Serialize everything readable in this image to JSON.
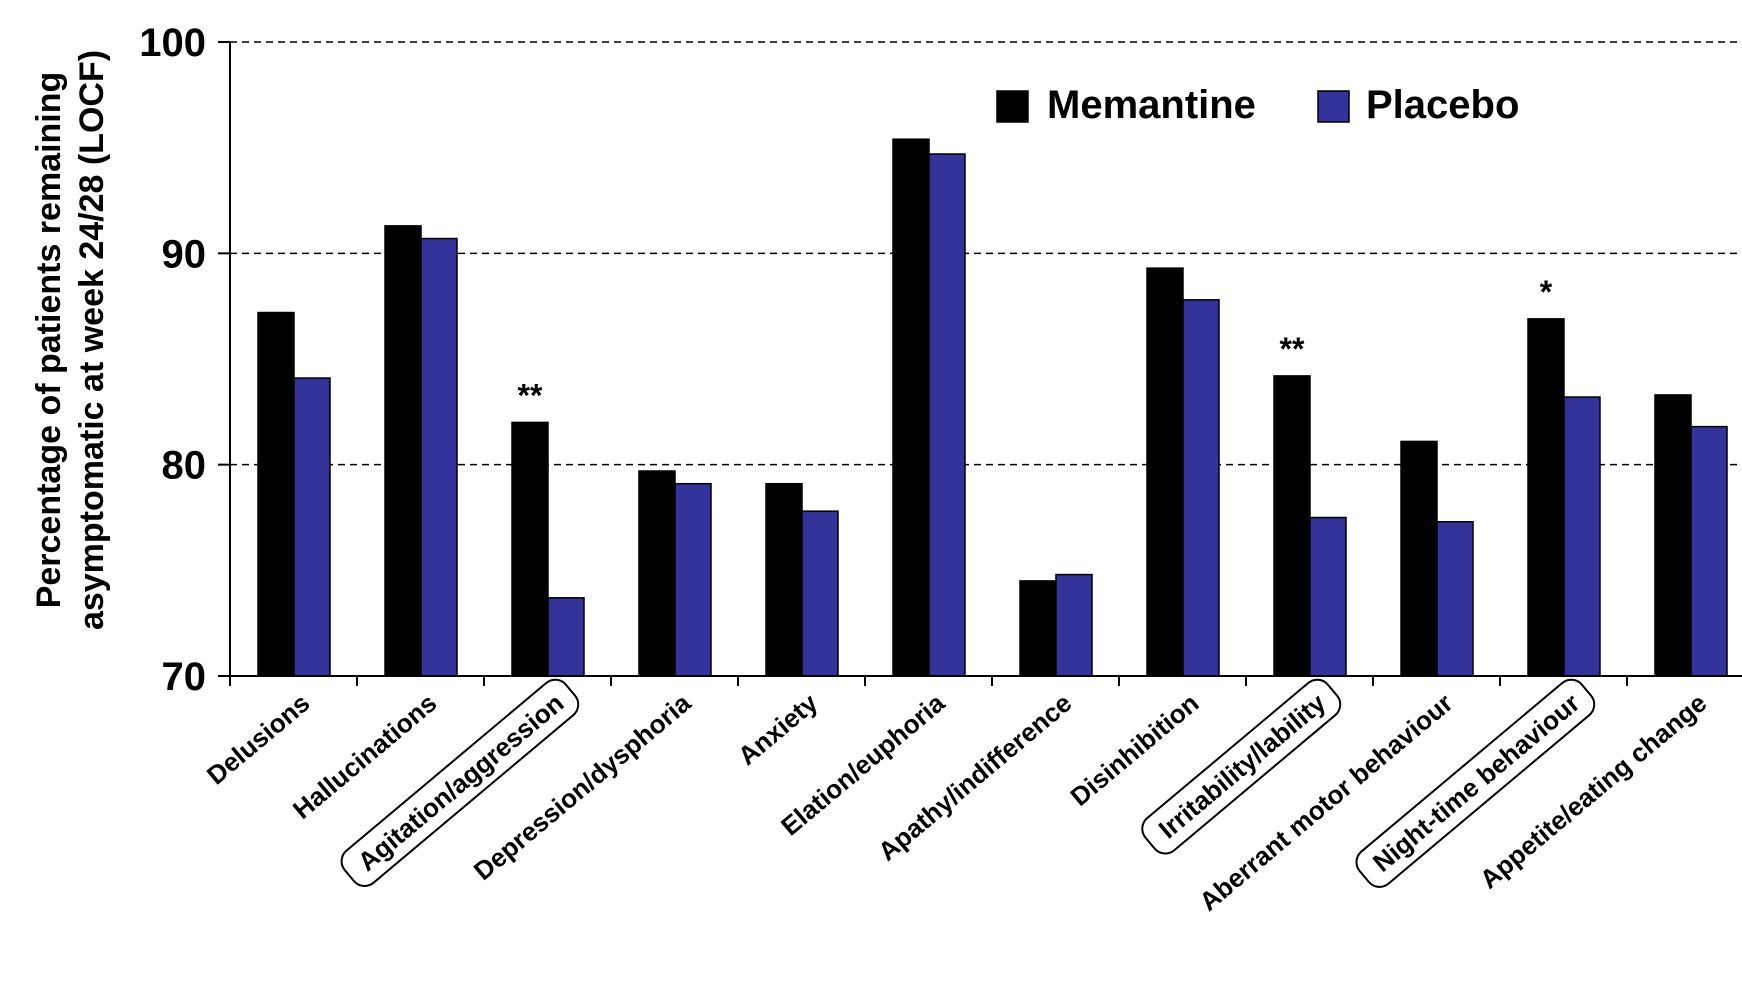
{
  "chart_data": {
    "type": "bar",
    "categories": [
      "Delusions",
      "Hallucinations",
      "Agitation/aggression",
      "Depression/dysphoria",
      "Anxiety",
      "Elation/euphoria",
      "Apathy/indifference",
      "Disinhibition",
      "Irritability/lability",
      "Aberrant motor behaviour",
      "Night-time behaviour",
      "Appetite/eating change"
    ],
    "boxed_categories": [
      "Agitation/aggression",
      "Irritability/lability",
      "Night-time behaviour"
    ],
    "series": [
      {
        "name": "Memantine",
        "color": "#000000",
        "values": [
          87.2,
          91.3,
          82.0,
          79.7,
          79.1,
          95.4,
          74.5,
          89.3,
          84.2,
          81.1,
          86.9,
          83.3
        ]
      },
      {
        "name": "Placebo",
        "color": "#333399",
        "values": [
          84.1,
          90.7,
          73.7,
          79.1,
          77.8,
          94.7,
          74.8,
          87.8,
          77.5,
          77.3,
          83.2,
          81.8
        ]
      }
    ],
    "significance": [
      {
        "category": "Agitation/aggression",
        "label": "**"
      },
      {
        "category": "Irritability/lability",
        "label": "**"
      },
      {
        "category": "Night-time behaviour",
        "label": "*"
      }
    ],
    "ylabel_lines": [
      "Percentage of patients remaining",
      "asymptomatic at week 24/28 (LOCF)"
    ],
    "xlabel": "",
    "title": "",
    "ylim": [
      70,
      100
    ],
    "yticks": [
      70,
      80,
      90,
      100
    ],
    "grid": "dashed horizontal at 80, 90, 100",
    "legend_position": "top-right"
  }
}
